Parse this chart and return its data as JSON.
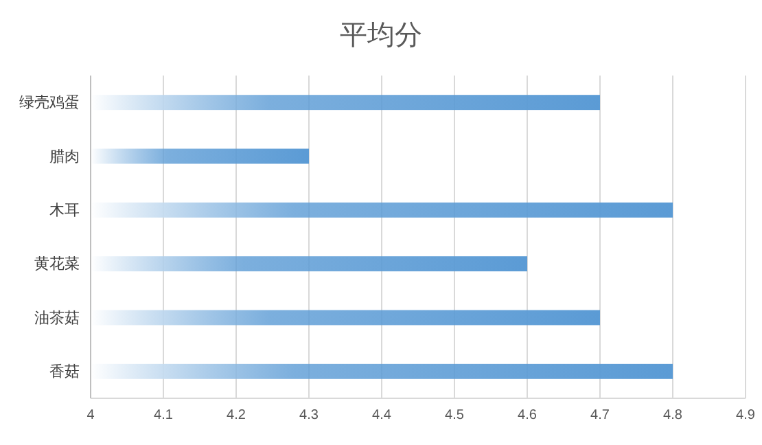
{
  "chart_data": {
    "type": "bar",
    "orientation": "horizontal",
    "title": "平均分",
    "categories": [
      "绿壳鸡蛋",
      "腊肉",
      "木耳",
      "黄花菜",
      "油茶菇",
      "香菇"
    ],
    "values": [
      4.7,
      4.3,
      4.8,
      4.6,
      4.7,
      4.8
    ],
    "color": "#5b9bd5",
    "xlim": [
      4,
      4.9
    ],
    "xticks": [
      4,
      4.1,
      4.2,
      4.3,
      4.4,
      4.5,
      4.6,
      4.7,
      4.8,
      4.9
    ],
    "grid": "x"
  }
}
